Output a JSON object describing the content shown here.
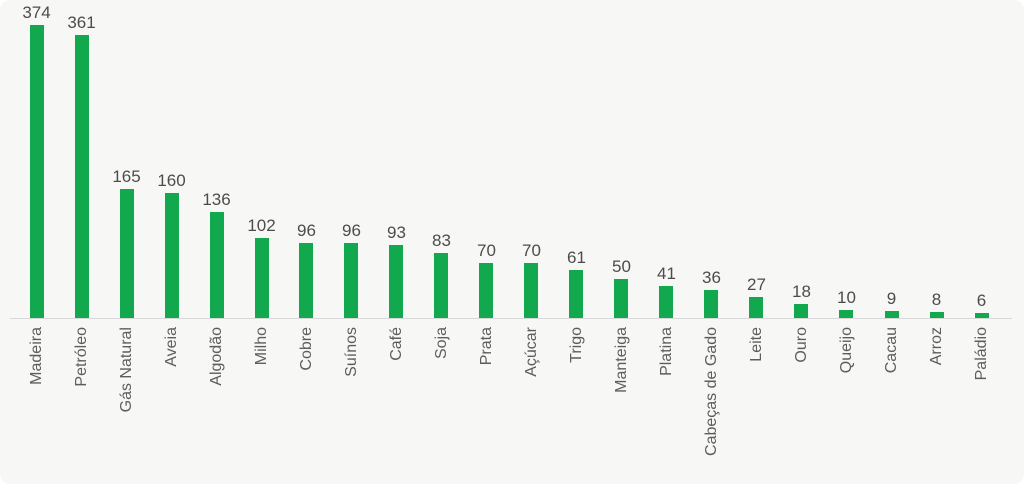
{
  "chart_data": {
    "type": "bar",
    "title": "",
    "xlabel": "",
    "ylabel": "",
    "categories": [
      "Madeira",
      "Petróleo",
      "Gás Natural",
      "Aveia",
      "Algodão",
      "Milho",
      "Cobre",
      "Suínos",
      "Café",
      "Soja",
      "Prata",
      "Açúcar",
      "Trigo",
      "Manteiga",
      "Platina",
      "Cabeças de Gado",
      "Leite",
      "Ouro",
      "Queijo",
      "Cacau",
      "Arroz",
      "Paládio"
    ],
    "values": [
      374,
      361,
      165,
      160,
      136,
      102,
      96,
      96,
      93,
      83,
      70,
      70,
      61,
      50,
      41,
      36,
      27,
      18,
      10,
      9,
      8,
      6
    ],
    "ylim": [
      0,
      374
    ],
    "grid": false,
    "legend": "none",
    "data_labels_shown": true,
    "category_labels_rotation_degrees": 90,
    "colors": {
      "bar": "#12a84d",
      "background": "#f7f7f6",
      "axis_line": "#d8d8d8",
      "value_label": "#4c4c4c",
      "category_label": "#5d5d5d"
    }
  }
}
